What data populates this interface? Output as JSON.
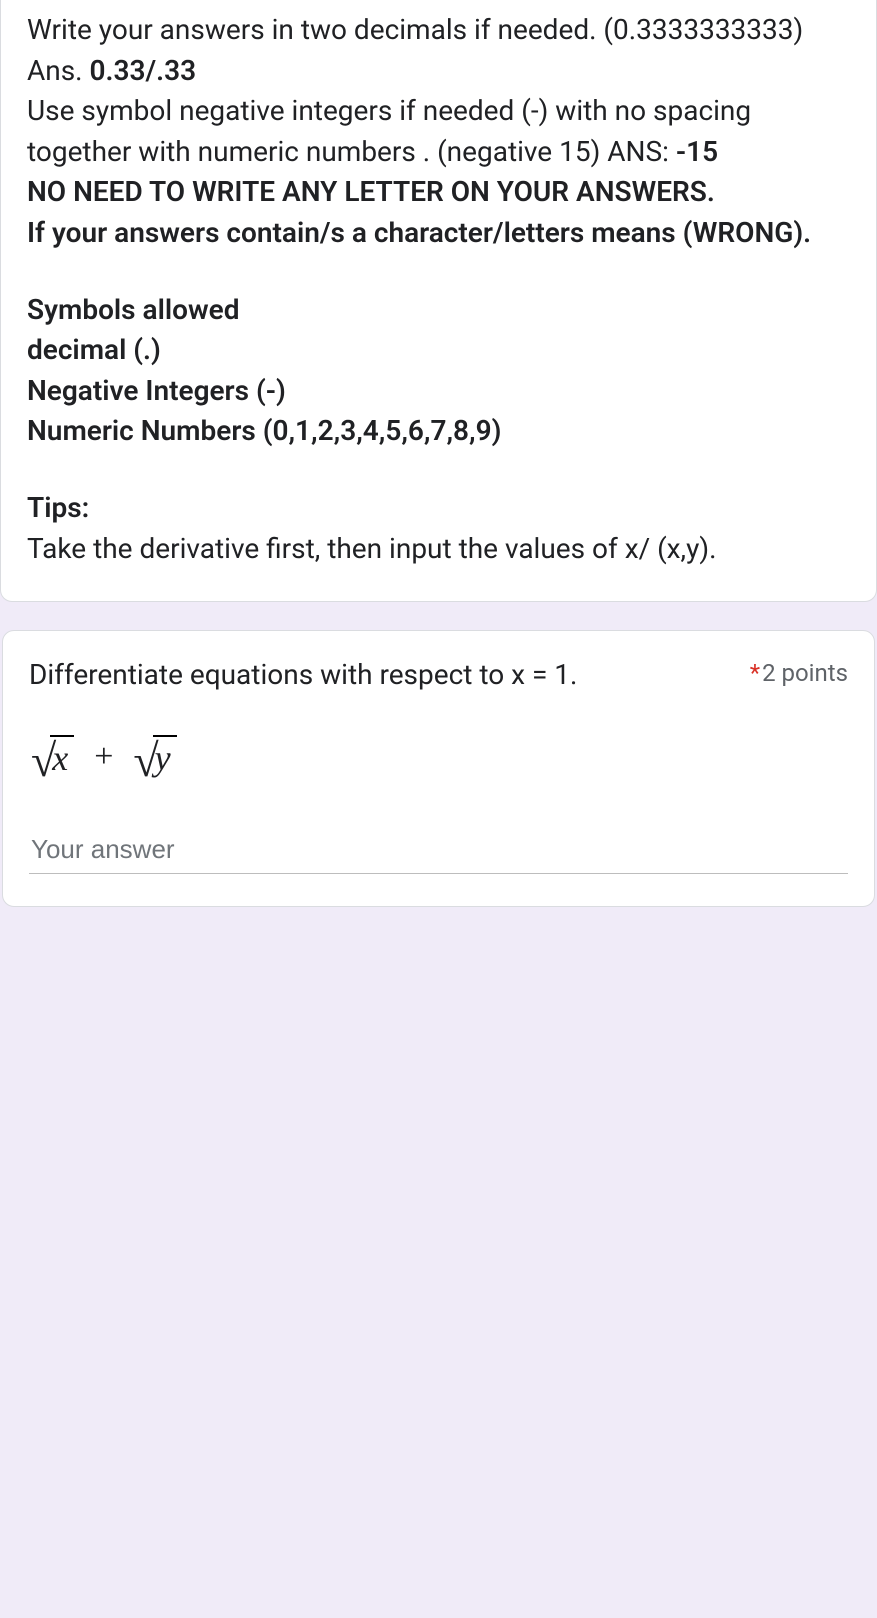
{
  "instructions": {
    "line1a": "Write your answers in two decimals if needed.  (0.3333333333) Ans. ",
    "line1b": "0.33/.33",
    "line2a": "Use symbol negative integers if needed (-) with no spacing together with numeric numbers . (negative 15)   ANS: ",
    "line2b": "-15",
    "bold1": "NO NEED TO WRITE ANY LETTER ON YOUR ANSWERS.",
    "bold2": "If your answers contain/s a character/letters means (WRONG).",
    "sym_head": "Symbols allowed",
    "sym1": "decimal (.)",
    "sym2": "Negative Integers (-)",
    "sym3": "Numeric Numbers (0,1,2,3,4,5,6,7,8,9)",
    "tips_head": "Tips:",
    "tips_body": "Take the derivative first, then input the values of x/ (x,y)."
  },
  "question": {
    "title": "Differentiate  equations with respect to x = 1.",
    "points": "2 points",
    "required_mark": "*",
    "radicand1": "x",
    "plus": "+",
    "radicand2": "y",
    "answer_placeholder": "Your answer"
  }
}
